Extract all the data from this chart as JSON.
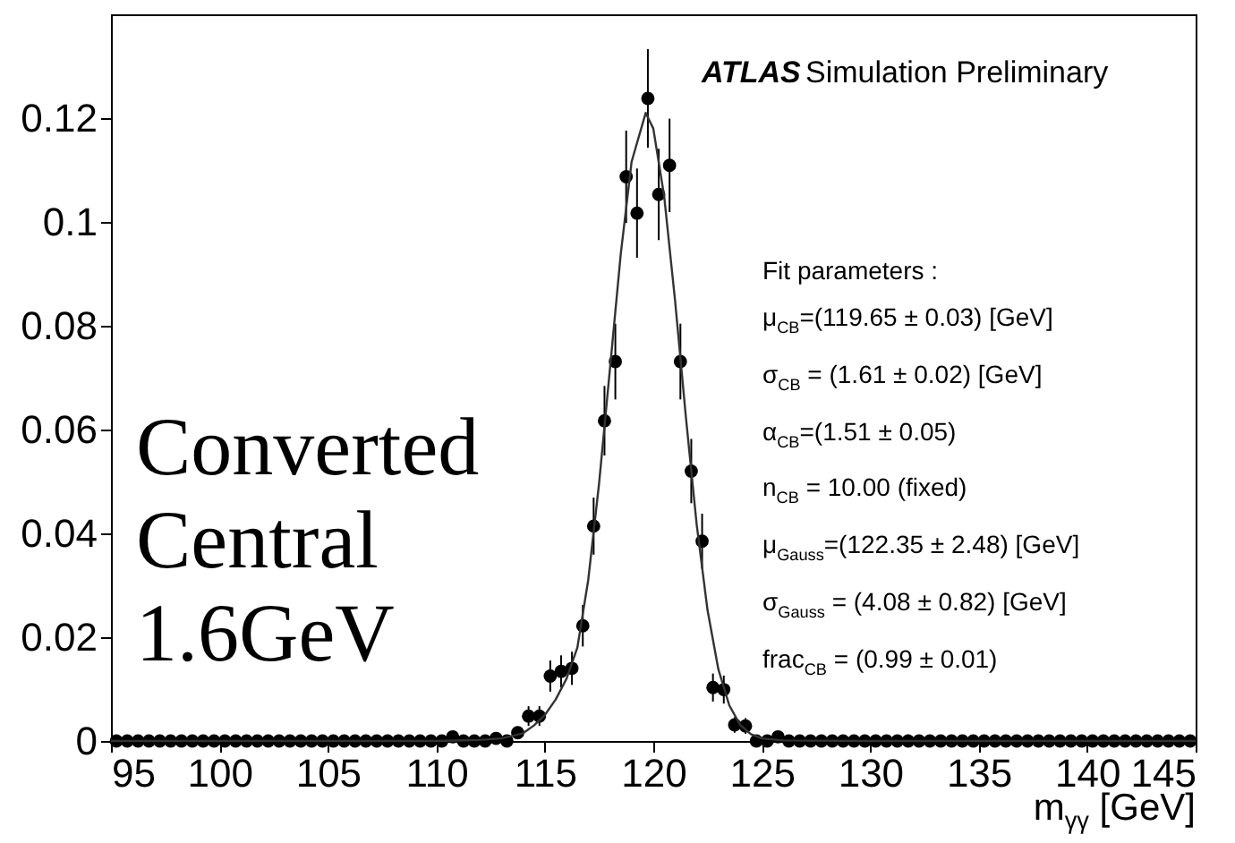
{
  "chart_data": {
    "type": "scatter",
    "xlabel": "m$_{γγ}$ [GeV]",
    "xlim": [
      95,
      145
    ],
    "xticks": [
      95,
      100,
      105,
      110,
      115,
      120,
      125,
      130,
      135,
      140,
      145
    ],
    "ylim": [
      0,
      0.14
    ],
    "yticks": [
      0,
      0.02,
      0.04,
      0.06,
      0.08,
      0.1,
      0.12
    ],
    "marker": "circle",
    "annotations": [
      "ATLAS",
      "Simulation Preliminary",
      "Converted\nCentral\n1.6GeV",
      "Fit parameters :\nμ$_{CB}$=(119.65  ± 0.03) [GeV]\nσ$_{CB}$ = (1.61 ± 0.02) [GeV]\nα$_{CB}$=(1.51 ± 0.05)\nn$_{CB}$ = 10.00 (fixed)\nμ$_{Gauss}$=(122.35  ± 2.48) [GeV]\nσ$_{Gauss}$ = (4.08  ± 0.82) [GeV]\nfrac$_{CB}$ = (0.99  ± 0.01)"
    ],
    "series": [
      {
        "color": "#000000",
        "x": [
          95.25,
          95.75,
          96.25,
          96.75,
          97.25,
          97.75,
          98.25,
          98.75,
          99.25,
          99.75,
          100.25,
          100.75,
          101.25,
          101.75,
          102.25,
          102.75,
          103.25,
          103.75,
          104.25,
          104.75,
          105.25,
          105.75,
          106.25,
          106.75,
          107.25,
          107.75,
          108.25,
          108.75,
          109.25,
          109.75,
          110.25,
          110.75,
          111.25,
          111.75,
          112.25,
          112.75,
          113.25,
          113.75,
          114.25,
          114.75,
          115.25,
          115.75,
          116.25,
          116.75,
          117.25,
          117.75,
          118.25,
          118.75,
          119.25,
          119.75,
          120.25,
          120.75,
          121.25,
          121.75,
          122.25,
          122.75,
          123.25,
          123.75,
          124.25,
          124.75,
          125.25,
          125.75,
          126.25,
          126.75,
          127.25,
          127.75,
          128.25,
          128.75,
          129.25,
          129.75,
          130.25,
          130.75,
          131.25,
          131.75,
          132.25,
          132.75,
          133.25,
          133.75,
          134.25,
          134.75,
          135.25,
          135.75,
          136.25,
          136.75,
          137.25,
          137.75,
          138.25,
          138.75,
          139.25,
          139.75,
          140.25,
          140.75,
          141.25,
          141.75,
          142.25,
          142.75,
          143.25,
          143.75,
          144.25,
          144.75
        ],
        "values": [
          0,
          0,
          0,
          0,
          0,
          0,
          0,
          0,
          0,
          0,
          0,
          0,
          0,
          0,
          0,
          0,
          0,
          0,
          0,
          0,
          0,
          0,
          0,
          0,
          0,
          0,
          0,
          0,
          0,
          0,
          0,
          0.0008,
          0,
          0,
          0,
          0.0005,
          0,
          0.0016,
          0.0048,
          0.0048,
          0.0125,
          0.0134,
          0.014,
          0.0222,
          0.0414,
          0.0617,
          0.0731,
          0.1087,
          0.1017,
          0.1238,
          0.1053,
          0.1109,
          0.0731,
          0.052,
          0.0385,
          0.0103,
          0.0099,
          0.0031,
          0.0029,
          0,
          0,
          0.0008,
          0,
          0,
          0,
          0,
          0,
          0,
          0,
          0,
          0,
          0,
          0,
          0,
          0,
          0,
          0,
          0,
          0,
          0,
          0,
          0,
          0,
          0,
          0,
          0,
          0,
          0,
          0,
          0,
          0,
          0,
          0,
          0,
          0,
          0,
          0,
          0,
          0,
          0
        ],
        "errors": [
          null,
          null,
          null,
          null,
          null,
          null,
          null,
          null,
          null,
          null,
          null,
          null,
          null,
          null,
          null,
          null,
          null,
          null,
          null,
          null,
          null,
          null,
          null,
          null,
          null,
          null,
          null,
          null,
          null,
          null,
          null,
          0.0008,
          null,
          null,
          null,
          0.0006,
          null,
          0.0011,
          0.0019,
          0.0019,
          0.003,
          0.0031,
          0.0032,
          0.004,
          0.0055,
          0.0067,
          0.0073,
          0.0089,
          0.0086,
          0.0095,
          0.0088,
          0.009,
          0.0073,
          0.0062,
          0.0053,
          0.0027,
          0.0027,
          0.0015,
          0.0015,
          null,
          null,
          0.0008,
          null,
          null,
          null,
          null,
          null,
          null,
          null,
          null,
          null,
          null,
          null,
          null,
          null,
          null,
          null,
          null,
          null,
          null,
          null,
          null,
          null,
          null,
          null,
          null,
          null,
          null,
          null,
          null,
          null,
          null,
          null,
          null,
          null,
          null,
          null,
          null,
          null,
          null
        ]
      },
      {
        "type": "line",
        "color": "#333333",
        "marker": "none",
        "line_style": "solid",
        "x": [
          95,
          110,
          112,
          113,
          114,
          114.5,
          115,
          115.5,
          116,
          116.5,
          117,
          117.5,
          118,
          118.5,
          119,
          119.65,
          120,
          120.5,
          121,
          121.5,
          122,
          122.5,
          123,
          123.5,
          124,
          124.5,
          125,
          126,
          130,
          145
        ],
        "values": [
          0,
          0,
          0.0002,
          0.0005,
          0.0015,
          0.003,
          0.005,
          0.008,
          0.012,
          0.018,
          0.031,
          0.0496,
          0.0716,
          0.0938,
          0.1116,
          0.121,
          0.118,
          0.105,
          0.085,
          0.0625,
          0.0417,
          0.0252,
          0.0138,
          0.0069,
          0.0031,
          0.0013,
          0.0005,
          0.0001,
          0,
          0
        ]
      }
    ]
  }
}
